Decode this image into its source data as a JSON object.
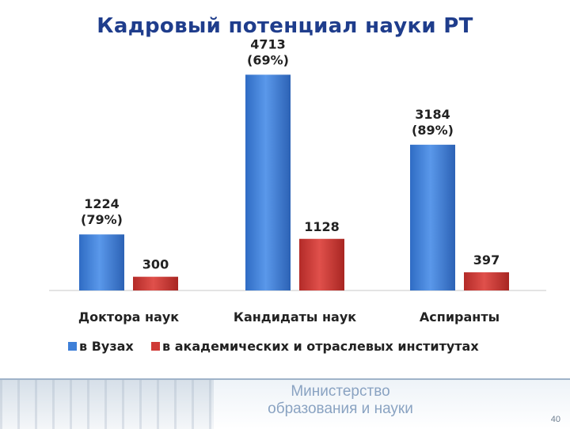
{
  "title": "Кадровый потенциал науки РТ",
  "chart_data": {
    "type": "bar",
    "categories": [
      "Доктора наук",
      "Кандидаты наук",
      "Аспиранты"
    ],
    "series": [
      {
        "name": "в Вузах",
        "values": [
          1224,
          4713,
          3184
        ],
        "labels": [
          "1224",
          "4713",
          "3184"
        ],
        "percents": [
          "(79%)",
          "(69%)",
          "(89%)"
        ],
        "color": "#3e7fd8"
      },
      {
        "name": "в академических и отраслевых институтах",
        "values": [
          300,
          1128,
          397
        ],
        "labels": [
          "300",
          "1128",
          "397"
        ],
        "color": "#cf3a36"
      }
    ],
    "ylim": [
      0,
      5100
    ],
    "legend_position": "bottom",
    "grid": false
  },
  "footer": {
    "ministry_line1": "Министерство",
    "ministry_line2": "образования и науки",
    "page_number": "40"
  }
}
